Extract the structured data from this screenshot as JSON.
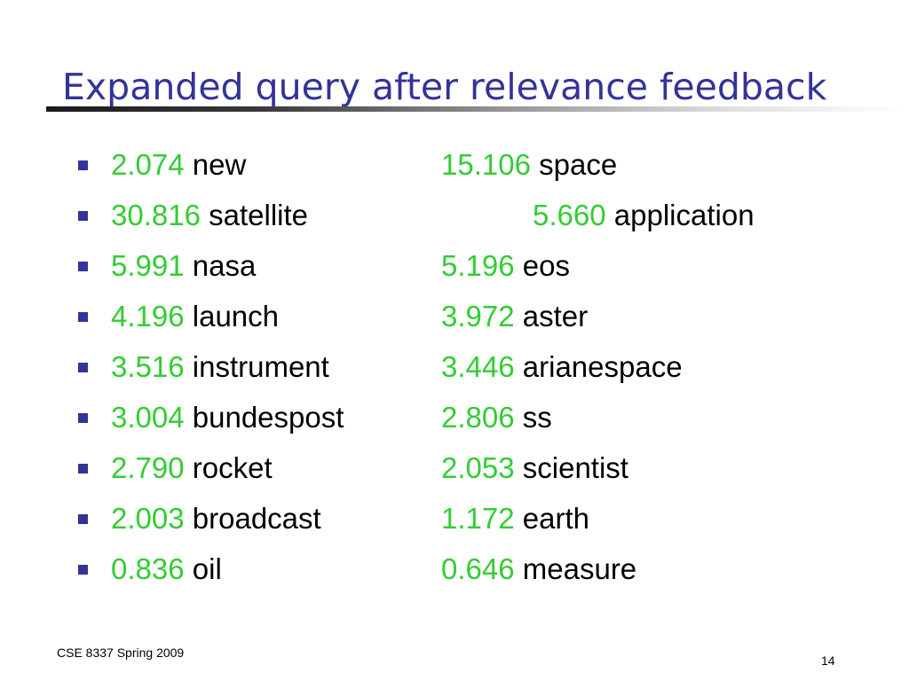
{
  "slide": {
    "title": "Expanded query after relevance feedback",
    "footer": "CSE 8337 Spring 2009",
    "page_number": "14",
    "colors": {
      "title": "#333399",
      "bullet": "#333399",
      "weight": "#33cc33",
      "term": "#000000"
    }
  },
  "rows": [
    {
      "left": {
        "weight": "2.074",
        "term": "new"
      },
      "right": {
        "weight": "15.106",
        "term": "space"
      }
    },
    {
      "left": {
        "weight": "30.816",
        "term": "satellite"
      },
      "right": {
        "weight": "5.660",
        "term": "application"
      }
    },
    {
      "left": {
        "weight": "5.991",
        "term": "nasa"
      },
      "right": {
        "weight": "5.196",
        "term": "eos"
      }
    },
    {
      "left": {
        "weight": "4.196",
        "term": "launch"
      },
      "right": {
        "weight": "3.972",
        "term": "aster"
      }
    },
    {
      "left": {
        "weight": "3.516",
        "term": "instrument"
      },
      "right": {
        "weight": "3.446",
        "term": "arianespace"
      }
    },
    {
      "left": {
        "weight": "3.004",
        "term": "bundespost"
      },
      "right": {
        "weight": "2.806",
        "term": "ss"
      }
    },
    {
      "left": {
        "weight": "2.790",
        "term": "rocket"
      },
      "right": {
        "weight": "2.053",
        "term": "scientist"
      }
    },
    {
      "left": {
        "weight": "2.003",
        "term": "broadcast"
      },
      "right": {
        "weight": "1.172",
        "term": "earth"
      }
    },
    {
      "left": {
        "weight": "0.836",
        "term": "oil"
      },
      "right": {
        "weight": "0.646",
        "term": "measure"
      }
    }
  ]
}
